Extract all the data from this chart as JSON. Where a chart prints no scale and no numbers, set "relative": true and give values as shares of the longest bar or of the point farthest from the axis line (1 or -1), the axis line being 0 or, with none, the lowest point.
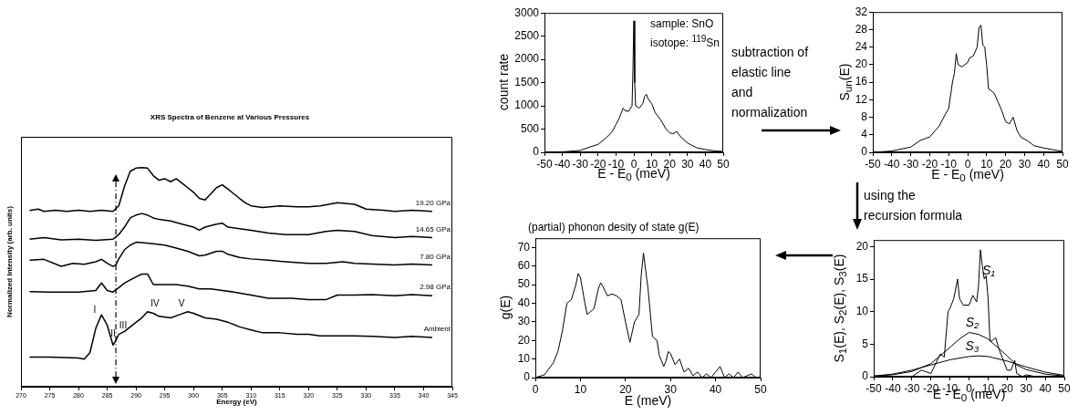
{
  "chart_data": [
    {
      "type": "line",
      "title": "XRS Spectra of Benzene at Various Pressures",
      "xlabel": "Energy (eV)",
      "ylabel": "Normalized Intensity (arb. units)",
      "relative": true,
      "xlim": [
        270,
        345
      ],
      "xticks": [
        270,
        275,
        280,
        285,
        290,
        295,
        300,
        305,
        310,
        315,
        320,
        325,
        330,
        335,
        340,
        345
      ],
      "series": [
        {
          "name": "19.20 GPa",
          "color": "#000000",
          "x": [
            271.5,
            273,
            274,
            276,
            278,
            280,
            282,
            284,
            286,
            287,
            288,
            289,
            290,
            291,
            292,
            293,
            294,
            295,
            296,
            297,
            298,
            299,
            300,
            301,
            302,
            303,
            304,
            305,
            306,
            307,
            308,
            309,
            310,
            312,
            315,
            318,
            320,
            322,
            325,
            328,
            330,
            333,
            335,
            338,
            341.5
          ],
          "values": [
            0.804,
            0.81,
            0.8,
            0.805,
            0.8,
            0.805,
            0.8,
            0.805,
            0.8,
            0.825,
            0.914,
            0.983,
            0.997,
            1,
            0.997,
            0.963,
            0.942,
            0.949,
            0.935,
            0.949,
            0.928,
            0.908,
            0.887,
            0.859,
            0.852,
            0.88,
            0.908,
            0.921,
            0.901,
            0.88,
            0.859,
            0.839,
            0.825,
            0.818,
            0.825,
            0.821,
            0.821,
            0.825,
            0.839,
            0.832,
            0.81,
            0.805,
            0.8,
            0.805,
            0.8
          ]
        },
        {
          "name": "14.65 GPa",
          "color": "#000000",
          "x": [
            271.5,
            274,
            277,
            280,
            283,
            286,
            287,
            288,
            289,
            290,
            291,
            292,
            293,
            294,
            296,
            298,
            300,
            301,
            302,
            304,
            305,
            306,
            308,
            310,
            313,
            316,
            320,
            323,
            325,
            328,
            331,
            335,
            338,
            341.5
          ],
          "values": [
            0.673,
            0.68,
            0.67,
            0.673,
            0.668,
            0.673,
            0.694,
            0.728,
            0.77,
            0.783,
            0.79,
            0.783,
            0.77,
            0.763,
            0.756,
            0.742,
            0.728,
            0.714,
            0.728,
            0.742,
            0.746,
            0.728,
            0.721,
            0.714,
            0.701,
            0.694,
            0.694,
            0.708,
            0.714,
            0.708,
            0.69,
            0.68,
            0.685,
            0.68
          ]
        },
        {
          "name": "7.80 GPa",
          "color": "#000000",
          "x": [
            271.5,
            274,
            277,
            279,
            281,
            283,
            284,
            285,
            286,
            286.5,
            287,
            288,
            289,
            290,
            291,
            293,
            295,
            297,
            299,
            301,
            302,
            304,
            305,
            306,
            308,
            310,
            313,
            316,
            320,
            323,
            326,
            328,
            331,
            335,
            338,
            341.5
          ],
          "values": [
            0.577,
            0.581,
            0.549,
            0.563,
            0.559,
            0.57,
            0.581,
            0.563,
            0.549,
            0.556,
            0.583,
            0.625,
            0.646,
            0.659,
            0.657,
            0.652,
            0.646,
            0.632,
            0.618,
            0.597,
            0.6,
            0.618,
            0.618,
            0.604,
            0.59,
            0.583,
            0.577,
            0.57,
            0.563,
            0.563,
            0.57,
            0.563,
            0.56,
            0.555,
            0.56,
            0.555
          ]
        },
        {
          "name": "2.98 GPa",
          "color": "#000000",
          "x": [
            271.5,
            275,
            280,
            283,
            284,
            285,
            286,
            287,
            288,
            289,
            290,
            291,
            292,
            293,
            295,
            297,
            299,
            301,
            303,
            305,
            307,
            310,
            313,
            317,
            320,
            323,
            325,
            328,
            331,
            335,
            338,
            341.5
          ],
          "values": [
            0.434,
            0.432,
            0.432,
            0.439,
            0.473,
            0.439,
            0.432,
            0.452,
            0.473,
            0.487,
            0.501,
            0.514,
            0.514,
            0.466,
            0.466,
            0.466,
            0.459,
            0.446,
            0.446,
            0.439,
            0.432,
            0.418,
            0.404,
            0.404,
            0.397,
            0.397,
            0.418,
            0.418,
            0.42,
            0.415,
            0.42,
            0.415
          ]
        },
        {
          "name": "Ambient",
          "color": "#000000",
          "x": [
            271.5,
            275,
            280,
            281,
            282,
            283,
            284,
            285,
            286,
            286.5,
            287,
            288,
            289,
            290,
            291,
            292,
            293,
            294,
            296,
            297.5,
            299,
            300,
            302,
            304,
            306,
            308,
            310,
            312,
            315,
            318,
            320,
            322,
            325,
            328,
            331,
            335,
            338,
            341.5
          ],
          "values": [
            0.135,
            0.135,
            0.131,
            0.126,
            0.156,
            0.266,
            0.328,
            0.28,
            0.19,
            0.211,
            0.239,
            0.252,
            0.273,
            0.294,
            0.314,
            0.342,
            0.335,
            0.321,
            0.314,
            0.328,
            0.342,
            0.335,
            0.314,
            0.308,
            0.294,
            0.273,
            0.259,
            0.246,
            0.246,
            0.239,
            0.239,
            0.232,
            0.232,
            0.232,
            0.23,
            0.225,
            0.23,
            0.225
          ]
        }
      ],
      "annotations": [
        "I",
        "II",
        "III",
        "IV",
        "V"
      ],
      "ref_lines": [
        {
          "axis": "x",
          "value": 286.5,
          "line_style": "dashed"
        }
      ]
    },
    {
      "type": "line",
      "xlabel": "E - E$_{0}$ (meV)",
      "ylabel": "count rate",
      "xlim": [
        -50,
        50
      ],
      "xticks": [
        -50,
        -40,
        -30,
        -20,
        -10,
        0,
        10,
        20,
        30,
        40,
        50
      ],
      "ylim": [
        0,
        3000
      ],
      "yticks": [
        0,
        500,
        1000,
        1500,
        2000,
        2500,
        3000
      ],
      "series": [
        {
          "color": "#000000",
          "x": [
            -50,
            -40,
            -30,
            -25,
            -20,
            -15,
            -12,
            -10,
            -8,
            -6,
            -5,
            -3,
            -1,
            -0.5,
            0,
            0.5,
            1,
            3,
            5,
            6,
            7,
            8,
            10,
            12,
            15,
            18,
            20,
            22,
            24,
            26,
            30,
            35,
            40,
            45,
            50
          ],
          "values": [
            0,
            10,
            40,
            110,
            170,
            330,
            450,
            600,
            750,
            950,
            900,
            880,
            1000,
            1800,
            2830,
            1500,
            1000,
            950,
            1050,
            1200,
            1250,
            1150,
            1050,
            850,
            700,
            500,
            420,
            400,
            450,
            340,
            200,
            100,
            60,
            30,
            20
          ]
        }
      ],
      "annotations": [
        "sample: SnO",
        "isotope: $^{119}$Sn"
      ]
    },
    {
      "type": "line",
      "xlabel": "E - E$_{0}$ (meV)",
      "ylabel": "S$_{un}$(E)",
      "xlim": [
        -50,
        50
      ],
      "xticks": [
        -50,
        -40,
        -30,
        -20,
        -10,
        0,
        10,
        20,
        30,
        40,
        50
      ],
      "ylim": [
        0,
        32
      ],
      "yticks": [
        0,
        4,
        8,
        12,
        16,
        20,
        24,
        28,
        32
      ],
      "series": [
        {
          "color": "#000000",
          "x": [
            -50,
            -40,
            -30,
            -25,
            -22,
            -20,
            -15,
            -12,
            -10,
            -8,
            -7,
            -6,
            -5,
            -3,
            0,
            1,
            3,
            5,
            6,
            7,
            8,
            9,
            10,
            11,
            14,
            16,
            18,
            20,
            22,
            24,
            26,
            28,
            32,
            35,
            40,
            45,
            50
          ],
          "values": [
            0,
            0.3,
            1.2,
            2.7,
            3.2,
            3.5,
            6,
            8.5,
            10,
            16,
            18,
            22.5,
            20,
            19.5,
            20.5,
            21.5,
            22,
            24,
            28.5,
            29,
            24.5,
            24,
            20,
            14.5,
            13.5,
            11.5,
            9.5,
            7,
            6.5,
            8,
            5,
            3.5,
            2.5,
            1.5,
            1,
            0.6,
            0.2
          ]
        }
      ]
    },
    {
      "type": "line",
      "title": "(partial) phonon desity of state g(E)",
      "xlabel": "E (meV)",
      "ylabel": "g(E)",
      "xlim": [
        0,
        50
      ],
      "xticks": [
        0,
        10,
        20,
        30,
        40,
        50
      ],
      "ylim": [
        0,
        75
      ],
      "yticks": [
        0,
        10,
        20,
        30,
        40,
        50,
        60,
        70
      ],
      "series": [
        {
          "color": "#000000",
          "x": [
            0,
            2,
            4,
            5,
            6,
            7,
            8,
            9,
            9.5,
            10,
            11,
            11.5,
            12,
            13,
            14,
            14.5,
            15,
            16,
            17,
            18,
            19,
            20,
            21,
            22,
            23,
            23.5,
            24,
            25,
            26,
            27,
            27.5,
            28.5,
            29,
            29.5,
            30,
            31,
            32,
            33,
            34,
            35,
            36,
            37,
            38,
            39,
            40,
            41,
            42,
            43,
            44,
            45,
            46,
            48,
            49,
            50
          ],
          "values": [
            0,
            1.5,
            8,
            14,
            25,
            40,
            42,
            50,
            56,
            54,
            40,
            34,
            35,
            37,
            48,
            51,
            49,
            44,
            45,
            44,
            42,
            30,
            19,
            30,
            34,
            55,
            67,
            48,
            22,
            20,
            12,
            6,
            9,
            14,
            13,
            7,
            10,
            3,
            5,
            1,
            3,
            0,
            2,
            0,
            3,
            6,
            0,
            2,
            0,
            3,
            0,
            2,
            0,
            0
          ]
        }
      ]
    },
    {
      "type": "line",
      "xlabel": "E - E$_{0}$ (meV)",
      "ylabel": "S$_{1}$(E), S$_{2}$(E), S$_{3}$(E)",
      "xlim": [
        -50,
        50
      ],
      "xticks": [
        -50,
        -40,
        -30,
        -20,
        -10,
        0,
        10,
        20,
        30,
        40,
        50
      ],
      "ylim": [
        0,
        21
      ],
      "yticks": [
        0,
        5,
        10,
        15,
        20
      ],
      "series": [
        {
          "color": "#000000",
          "x": [
            -50,
            -30,
            -25,
            -23,
            -20,
            -15,
            -13,
            -11,
            -10,
            -8,
            -6,
            -5,
            -3,
            0,
            2,
            4,
            5,
            6,
            7,
            8,
            9,
            10,
            11,
            12,
            14,
            16,
            18,
            20,
            22,
            24,
            25,
            28,
            30,
            35,
            50
          ],
          "values": [
            0,
            0,
            1,
            0.8,
            0.5,
            3.5,
            3,
            10,
            10.5,
            12,
            15,
            12,
            11,
            11,
            12.5,
            11.5,
            14,
            19.5,
            17,
            15,
            15.5,
            12,
            5.5,
            5.5,
            6,
            4,
            2.5,
            1,
            1,
            2.5,
            0.5,
            0,
            0.3,
            0,
            0
          ]
        },
        {
          "color": "#000000",
          "x": [
            -50,
            -40,
            -30,
            -20,
            -10,
            -5,
            0,
            5,
            10,
            15,
            20,
            25,
            30,
            40,
            50
          ],
          "values": [
            0.1,
            0.3,
            0.8,
            2,
            4.5,
            5.8,
            6.8,
            6.5,
            5.8,
            4.5,
            3.2,
            1.8,
            1.1,
            0.4,
            0.1
          ]
        },
        {
          "color": "#000000",
          "x": [
            -50,
            -40,
            -30,
            -20,
            -10,
            0,
            5,
            10,
            20,
            30,
            40,
            50
          ],
          "values": [
            0.1,
            0.4,
            1,
            1.8,
            2.6,
            3.1,
            3.2,
            3.1,
            2.4,
            1.5,
            0.7,
            0.2
          ]
        }
      ],
      "annotations": [
        "S₁",
        "S₂",
        "S₃"
      ]
    },
    {
      "type": "other",
      "annotations": [
        "subtraction of elastic line and normalization",
        "using the recursion formula"
      ]
    }
  ]
}
